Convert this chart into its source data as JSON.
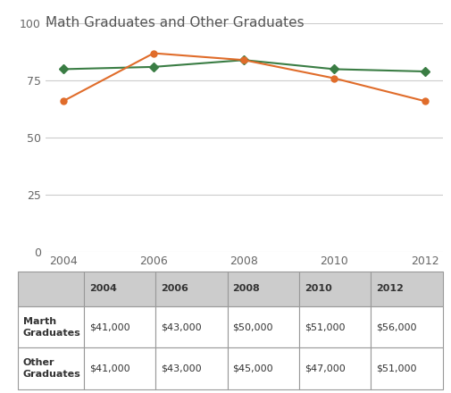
{
  "title": "Math Graduates and Other Graduates",
  "years": [
    2004,
    2006,
    2008,
    2010,
    2012
  ],
  "math_graduates": [
    80,
    81,
    84,
    80,
    79
  ],
  "other_graduates": [
    66,
    87,
    84,
    76,
    66
  ],
  "math_color": "#3a7d44",
  "other_color": "#e06c2a",
  "ylim": [
    0,
    100
  ],
  "yticks": [
    0,
    25,
    50,
    75,
    100
  ],
  "legend_labels": [
    "Math Graduates",
    "Other Graduates"
  ],
  "table_headers": [
    "",
    "2004",
    "2006",
    "2008",
    "2010",
    "2012"
  ],
  "table_row1_label": "Marth\nGraduates",
  "table_row2_label": "Other\nGraduates",
  "table_row1_values": [
    "$41,000",
    "$43,000",
    "$50,000",
    "$51,000",
    "$56,000"
  ],
  "table_row2_values": [
    "$41,000",
    "$43,000",
    "$45,000",
    "$47,000",
    "$51,000"
  ],
  "header_bg": "#cccccc",
  "data_bg": "#ffffff",
  "label_col_bg": "#ffffff",
  "border_color": "#999999",
  "title_fontsize": 11,
  "tick_fontsize": 9,
  "legend_fontsize": 9,
  "table_fontsize": 8
}
